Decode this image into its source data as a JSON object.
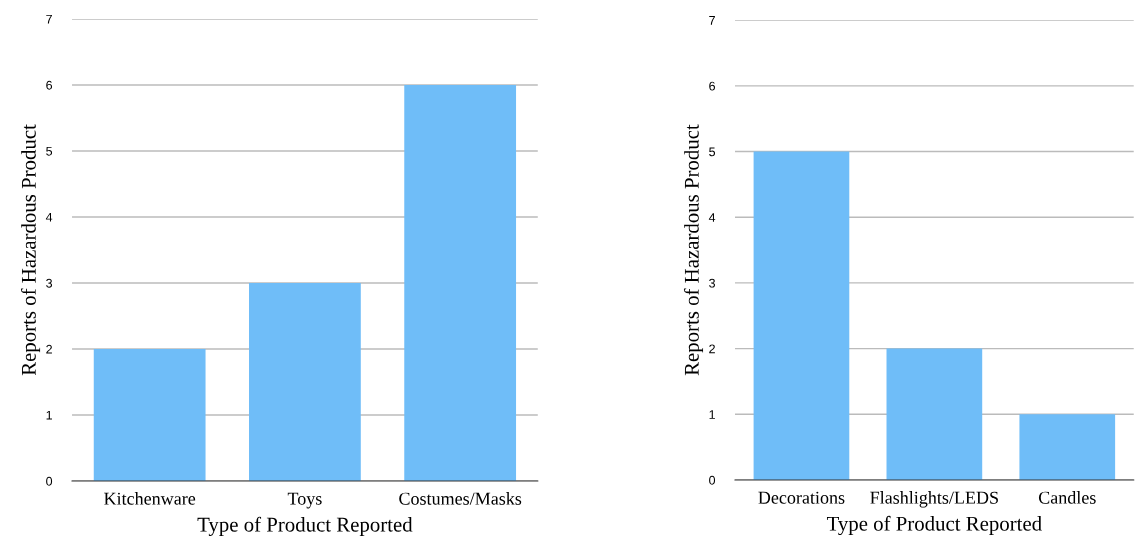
{
  "chart_data": [
    {
      "type": "bar",
      "categories": [
        "Kitchenware",
        "Toys",
        "Costumes/Masks"
      ],
      "values": [
        2,
        3,
        6
      ],
      "color": "#6fbdf8",
      "xlabel": "Type of Product Reported",
      "ylabel": "Reports of Hazardous Product",
      "ylim": [
        0,
        7
      ],
      "yticks": [
        0,
        1,
        2,
        3,
        4,
        5,
        6,
        7
      ],
      "grid": "y"
    },
    {
      "type": "bar",
      "categories": [
        "Decorations",
        "Flashlights/LEDS",
        "Candles"
      ],
      "values": [
        5,
        2,
        1
      ],
      "color": "#6fbdf8",
      "xlabel": "Type of Product Reported",
      "ylabel": "Reports of Hazardous Product",
      "ylim": [
        0,
        7
      ],
      "yticks": [
        0,
        1,
        2,
        3,
        4,
        5,
        6,
        7
      ],
      "grid": "y"
    }
  ]
}
